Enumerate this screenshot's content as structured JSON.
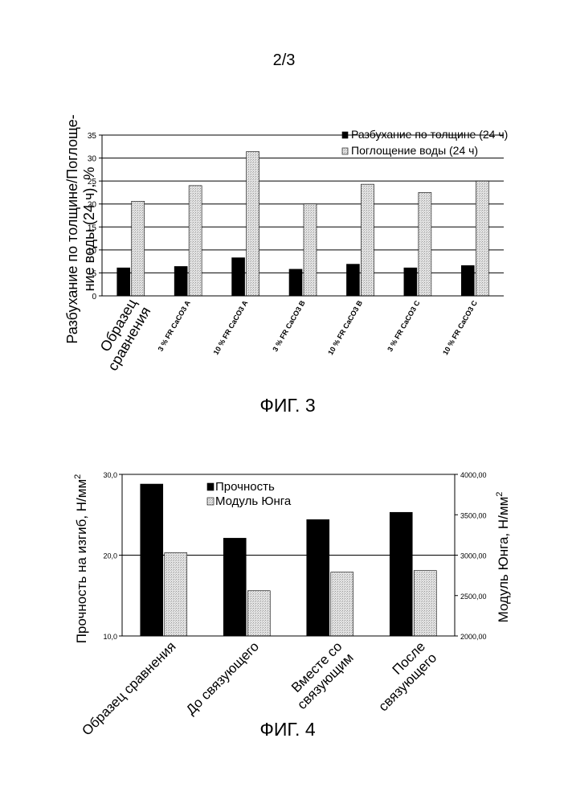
{
  "page_number": "2/3",
  "figures": {
    "fig3": {
      "caption": "ФИГ. 3"
    },
    "fig4": {
      "caption": "ФИГ. 4"
    }
  },
  "colors": {
    "primary": "#000000",
    "secondary": "#d9d9d9",
    "background": "#ffffff"
  },
  "chart_data": [
    {
      "type": "bar",
      "title": "",
      "xlabel": "",
      "ylabel": "Разбухание по толщине/Поглоще-ние воды (24 ч), %",
      "ylabel_lines": [
        "Разбухание по толщине/Поглоще-",
        "ние воды (24 ч), %"
      ],
      "ylim": [
        0,
        35
      ],
      "yticks": [
        0,
        5,
        10,
        15,
        20,
        25,
        30,
        35
      ],
      "ytick_labels": [
        "0",
        "5",
        "10",
        "15",
        "20",
        "25",
        "30",
        "35"
      ],
      "grid": true,
      "legend_position": "top-right",
      "categories": [
        "Образец сравнения",
        "3 % FR CaCO3 A",
        "10 % FR CaCO3 A",
        "3 % FR CaCO3 B",
        "10 % FR CaCO3 B",
        "3 % FR CaCO3 C",
        "10 % FR CaCO3 C"
      ],
      "category_label_lines": [
        [
          "Образец",
          "сравнения"
        ],
        [
          "3 % FR CaCO3 A"
        ],
        [
          "10 % FR CaCO3 A"
        ],
        [
          "3 % FR CaCO3 B"
        ],
        [
          "10 % FR CaCO3 B"
        ],
        [
          "3 % FR CaCO3 C"
        ],
        [
          "10 % FR CaCO3 C"
        ]
      ],
      "series": [
        {
          "name": "Разбухание по толщине (24 ч)",
          "color": "#000000",
          "values": [
            6.1,
            6.4,
            8.3,
            5.8,
            6.9,
            6.1,
            6.6
          ]
        },
        {
          "name": "Поглощение воды (24 ч)",
          "color": "#d9d9d9",
          "values": [
            20.6,
            24.0,
            31.4,
            20.0,
            24.3,
            22.5,
            25.0
          ]
        }
      ]
    },
    {
      "type": "bar",
      "title": "",
      "xlabel": "",
      "ylabel": "Прочность на изгиб, Н/мм²",
      "ylabel_left": "Прочность на изгиб, Н/мм",
      "ylabel_left_sup": "2",
      "ylabel_right": "Модуль Юнга, Н/мм",
      "ylabel_right_sup": "2",
      "ylim": [
        10,
        30
      ],
      "yticks": [
        10,
        20,
        30
      ],
      "ytick_labels": [
        "10,0",
        "20,0",
        "30,0"
      ],
      "ylim_right": [
        2000,
        4000
      ],
      "yticks_right": [
        2000,
        2500,
        3000,
        3500,
        4000
      ],
      "ytick_labels_right": [
        "2000,00",
        "2500,00",
        "3000,00",
        "3500,00",
        "4000,00"
      ],
      "grid": true,
      "legend_position": "top-center",
      "categories": [
        "Образец сравнения",
        "До связующего",
        "Вместе со связующим",
        "После связующего"
      ],
      "category_label_lines": [
        [
          "Образец сравнения"
        ],
        [
          "До связующего"
        ],
        [
          "Вместе со",
          "связующим"
        ],
        [
          "После",
          "связующего"
        ]
      ],
      "series": [
        {
          "name": "Прочность",
          "color": "#000000",
          "axis": "left",
          "values": [
            28.8,
            22.1,
            24.4,
            25.3
          ]
        },
        {
          "name": "Модуль Юнга",
          "color": "#d9d9d9",
          "axis": "right",
          "values": [
            3030,
            2560,
            2790,
            2810
          ]
        }
      ]
    }
  ]
}
